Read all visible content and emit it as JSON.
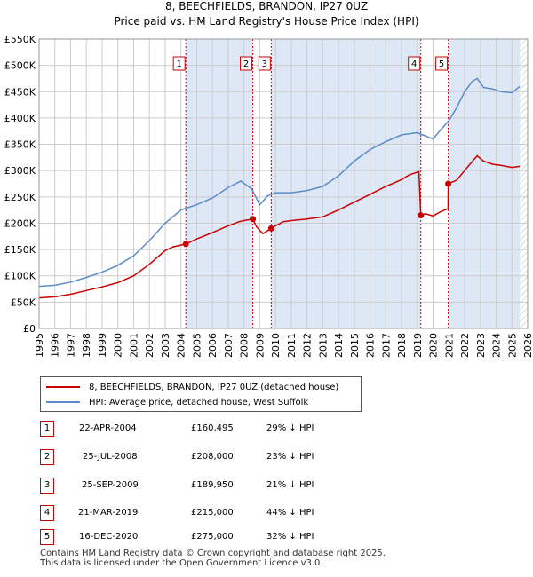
{
  "title_line1": "8, BEECHFIELDS, BRANDON, IP27 0UZ",
  "title_line2": "Price paid vs. HM Land Registry's House Price Index (HPI)",
  "chart_data": {
    "type": "line",
    "xlim": [
      1995,
      2026
    ],
    "ylim": [
      0,
      550000
    ],
    "y_ticks": [
      0,
      50000,
      100000,
      150000,
      200000,
      250000,
      300000,
      350000,
      400000,
      450000,
      500000,
      550000
    ],
    "y_tick_labels": [
      "£0",
      "£50K",
      "£100K",
      "£150K",
      "£200K",
      "£250K",
      "£300K",
      "£350K",
      "£400K",
      "£450K",
      "£500K",
      "£550K"
    ],
    "x_ticks": [
      1995,
      1996,
      1997,
      1998,
      1999,
      2000,
      2001,
      2002,
      2003,
      2004,
      2005,
      2006,
      2007,
      2008,
      2009,
      2010,
      2011,
      2012,
      2013,
      2014,
      2015,
      2016,
      2017,
      2018,
      2019,
      2020,
      2021,
      2022,
      2023,
      2024,
      2025,
      2026
    ],
    "grid": true,
    "colors": {
      "property": "#cc0000",
      "hpi": "#5b8cc9",
      "shade": "#dde7f5",
      "vline": "#cc0000"
    },
    "series": [
      {
        "name": "8, BEECHFIELDS, BRANDON, IP27 0UZ (detached house)",
        "color": "#cc0000",
        "x": [
          1995.0,
          1996.0,
          1997.0,
          1998.0,
          1999.0,
          2000.0,
          2001.0,
          2002.0,
          2003.0,
          2003.5,
          2004.31,
          2005.0,
          2006.0,
          2007.0,
          2007.7,
          2008.0,
          2008.56,
          2008.8,
          2009.2,
          2009.73,
          2010.0,
          2010.5,
          2011.0,
          2012.0,
          2013.0,
          2014.0,
          2015.0,
          2016.0,
          2017.0,
          2018.0,
          2018.5,
          2019.1,
          2019.22,
          2019.5,
          2020.0,
          2020.5,
          2020.95,
          2020.96,
          2021.5,
          2022.0,
          2022.5,
          2022.8,
          2023.2,
          2023.8,
          2024.3,
          2025.0,
          2025.5
        ],
        "y": [
          58000,
          60000,
          65000,
          72000,
          79000,
          87000,
          100000,
          122000,
          148000,
          155000,
          160495,
          170000,
          182000,
          195000,
          203000,
          205000,
          208000,
          193000,
          180000,
          189950,
          195000,
          203000,
          205000,
          208000,
          212000,
          225000,
          240000,
          255000,
          270000,
          283000,
          292000,
          298000,
          215000,
          218000,
          214000,
          222000,
          228000,
          275000,
          282000,
          300000,
          318000,
          328000,
          318000,
          312000,
          310000,
          306000,
          308000
        ]
      },
      {
        "name": "HPI: Average price, detached house, West Suffolk",
        "color": "#5b8cc9",
        "x": [
          1995.0,
          1996.0,
          1997.0,
          1998.0,
          1999.0,
          2000.0,
          2001.0,
          2002.0,
          2003.0,
          2004.0,
          2005.0,
          2006.0,
          2007.0,
          2007.8,
          2008.5,
          2009.0,
          2009.5,
          2010.0,
          2011.0,
          2012.0,
          2013.0,
          2014.0,
          2015.0,
          2016.0,
          2017.0,
          2018.0,
          2019.0,
          2020.0,
          2020.5,
          2021.0,
          2021.5,
          2022.0,
          2022.5,
          2022.8,
          2023.2,
          2023.8,
          2024.3,
          2025.0,
          2025.5
        ],
        "y": [
          80000,
          82000,
          88000,
          97000,
          107000,
          120000,
          138000,
          167000,
          200000,
          225000,
          235000,
          248000,
          268000,
          280000,
          265000,
          235000,
          252000,
          258000,
          258000,
          262000,
          270000,
          290000,
          318000,
          340000,
          355000,
          368000,
          372000,
          360000,
          378000,
          395000,
          420000,
          450000,
          470000,
          475000,
          458000,
          455000,
          450000,
          448000,
          460000
        ]
      }
    ],
    "transactions_markers": [
      {
        "label": "1",
        "x": 2004.31,
        "y": 160495
      },
      {
        "label": "2",
        "x": 2008.56,
        "y": 208000
      },
      {
        "label": "3",
        "x": 2009.73,
        "y": 189950
      },
      {
        "label": "4",
        "x": 2019.22,
        "y": 215000
      },
      {
        "label": "5",
        "x": 2020.96,
        "y": 275000
      }
    ]
  },
  "legend": {
    "property_label": "8, BEECHFIELDS, BRANDON, IP27 0UZ (detached house)",
    "hpi_label": "HPI: Average price, detached house, West Suffolk"
  },
  "transactions": [
    {
      "id": "1",
      "date": "22-APR-2004",
      "price": "£160,495",
      "hpi": "29% ↓ HPI"
    },
    {
      "id": "2",
      "date": "25-JUL-2008",
      "price": "£208,000",
      "hpi": "23% ↓ HPI"
    },
    {
      "id": "3",
      "date": "25-SEP-2009",
      "price": "£189,950",
      "hpi": "21% ↓ HPI"
    },
    {
      "id": "4",
      "date": "21-MAR-2019",
      "price": "£215,000",
      "hpi": "44% ↓ HPI"
    },
    {
      "id": "5",
      "date": "16-DEC-2020",
      "price": "£275,000",
      "hpi": "32% ↓ HPI"
    }
  ],
  "footer_line1": "Contains HM Land Registry data © Crown copyright and database right 2025.",
  "footer_line2": "This data is licensed under the Open Government Licence v3.0."
}
